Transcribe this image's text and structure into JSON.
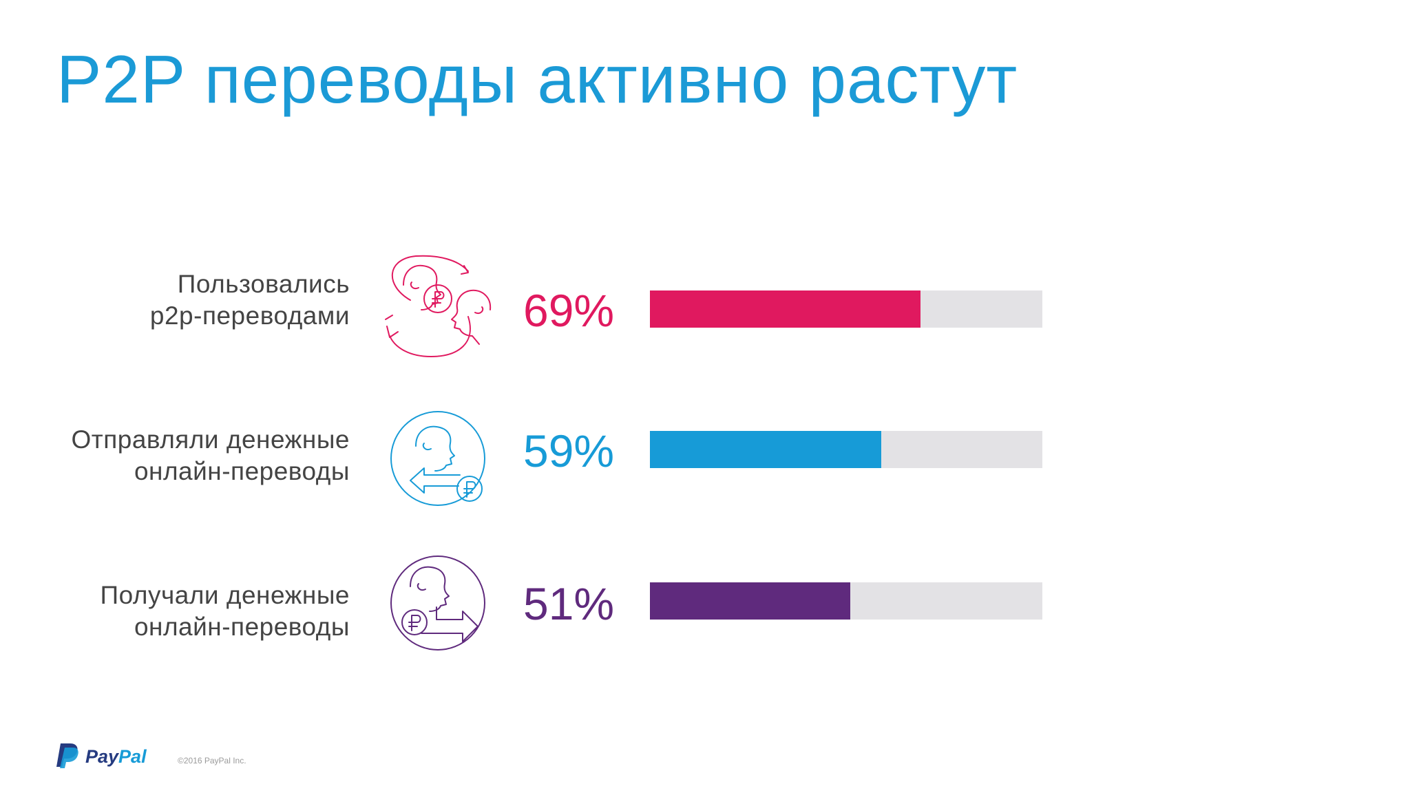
{
  "title": "P2P переводы активно растут",
  "chart_data": {
    "type": "bar",
    "orientation": "horizontal",
    "xlim": [
      0,
      100
    ],
    "rows": [
      {
        "label_lines": [
          "Пользовались",
          "p2p-переводами"
        ],
        "value": 69,
        "value_text": "69%",
        "color": "#e0195f",
        "icon": "p2p-exchange-icon"
      },
      {
        "label_lines": [
          "Отправляли денежные",
          "онлайн-переводы"
        ],
        "value": 59,
        "value_text": "59%",
        "color": "#179bd7",
        "icon": "send-money-icon"
      },
      {
        "label_lines": [
          "Получали денежные",
          "онлайн-переводы"
        ],
        "value": 51,
        "value_text": "51%",
        "color": "#5f2a7d",
        "icon": "receive-money-icon"
      }
    ],
    "track_color": "#e3e2e5"
  },
  "footer": {
    "logo_pay": "Pay",
    "logo_pal": "Pal",
    "copyright": "©2016 PayPal Inc."
  },
  "colors": {
    "title": "#1b9ad6",
    "label_text": "#444444",
    "logo_dark": "#253b80",
    "logo_light": "#179bd7"
  }
}
